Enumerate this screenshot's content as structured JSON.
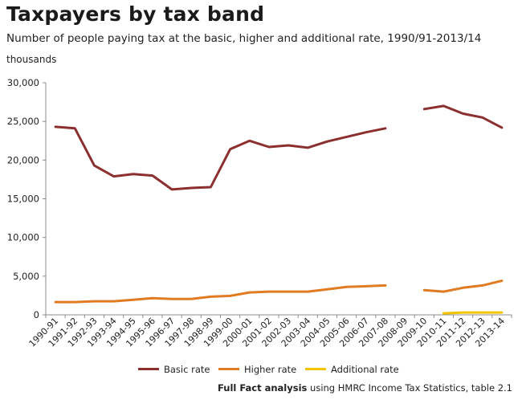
{
  "title": "Taxpayers by tax band",
  "subtitle": "Number of people paying tax at the basic, higher and additional rate, 1990/91-2013/14",
  "unit_label": "thousands",
  "source": {
    "bold": "Full Fact analysis",
    "rest": " using HMRC Income Tax Statistics,  table 2.1"
  },
  "chart_data": {
    "type": "line",
    "categories": [
      "1990-91",
      "1991-92",
      "1992-93",
      "1993-94",
      "1994-95",
      "1995-96",
      "1996-97",
      "1997-98",
      "1998-99",
      "1999-00",
      "2000-01",
      "2001-02",
      "2002-03",
      "2003-04",
      "2004-05",
      "2005-06",
      "2006-07",
      "2007-08",
      "2008-09",
      "2009-10",
      "2010-11",
      "2011-12",
      "2012-13",
      "2013-14"
    ],
    "ylim": [
      0,
      30000
    ],
    "yticks": [
      0,
      5000,
      10000,
      15000,
      20000,
      25000,
      30000
    ],
    "ytick_labels": [
      "0",
      "5,000",
      "10,000",
      "15,000",
      "20,000",
      "25,000",
      "30,000"
    ],
    "grid": false,
    "legend_position": "bottom",
    "series": [
      {
        "name": "Basic rate",
        "color": "#8b2f2f",
        "values": [
          24300,
          24100,
          19300,
          17900,
          18200,
          18000,
          16200,
          16400,
          16500,
          21400,
          22500,
          21700,
          21900,
          21600,
          22400,
          23000,
          23600,
          24100,
          null,
          26600,
          27000,
          26000,
          25500,
          24200
        ]
      },
      {
        "name": "Higher rate",
        "color": "#e07b22",
        "values": [
          1650,
          1650,
          1750,
          1750,
          1950,
          2150,
          2050,
          2050,
          2350,
          2450,
          2900,
          3000,
          3000,
          3000,
          3300,
          3600,
          3700,
          3800,
          null,
          3200,
          3000,
          3500,
          3800,
          4400
        ]
      },
      {
        "name": "Additional rate",
        "color": "#f2c500",
        "values": [
          null,
          null,
          null,
          null,
          null,
          null,
          null,
          null,
          null,
          null,
          null,
          null,
          null,
          null,
          null,
          null,
          null,
          null,
          null,
          null,
          200,
          300,
          300,
          300
        ]
      }
    ]
  }
}
